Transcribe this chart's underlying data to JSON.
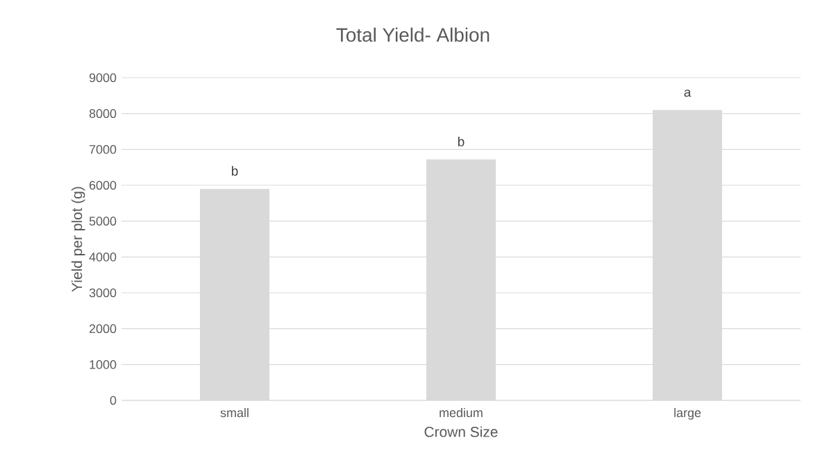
{
  "chart_data": {
    "type": "bar",
    "title": "Total Yield- Albion",
    "xlabel": "Crown Size",
    "ylabel": "Yield per plot (g)",
    "categories": [
      "small",
      "medium",
      "large"
    ],
    "values": [
      5900,
      6720,
      8100
    ],
    "color": "#d9d9d9",
    "ylim": [
      0,
      9000
    ],
    "yticks": [
      0,
      1000,
      2000,
      3000,
      4000,
      5000,
      6000,
      7000,
      8000,
      9000
    ],
    "grid": "y",
    "annotations": [
      {
        "text": "b",
        "x": "small",
        "y": 5900
      },
      {
        "text": "b",
        "x": "medium",
        "y": 6720
      },
      {
        "text": "a",
        "x": "large",
        "y": 8100
      }
    ]
  }
}
